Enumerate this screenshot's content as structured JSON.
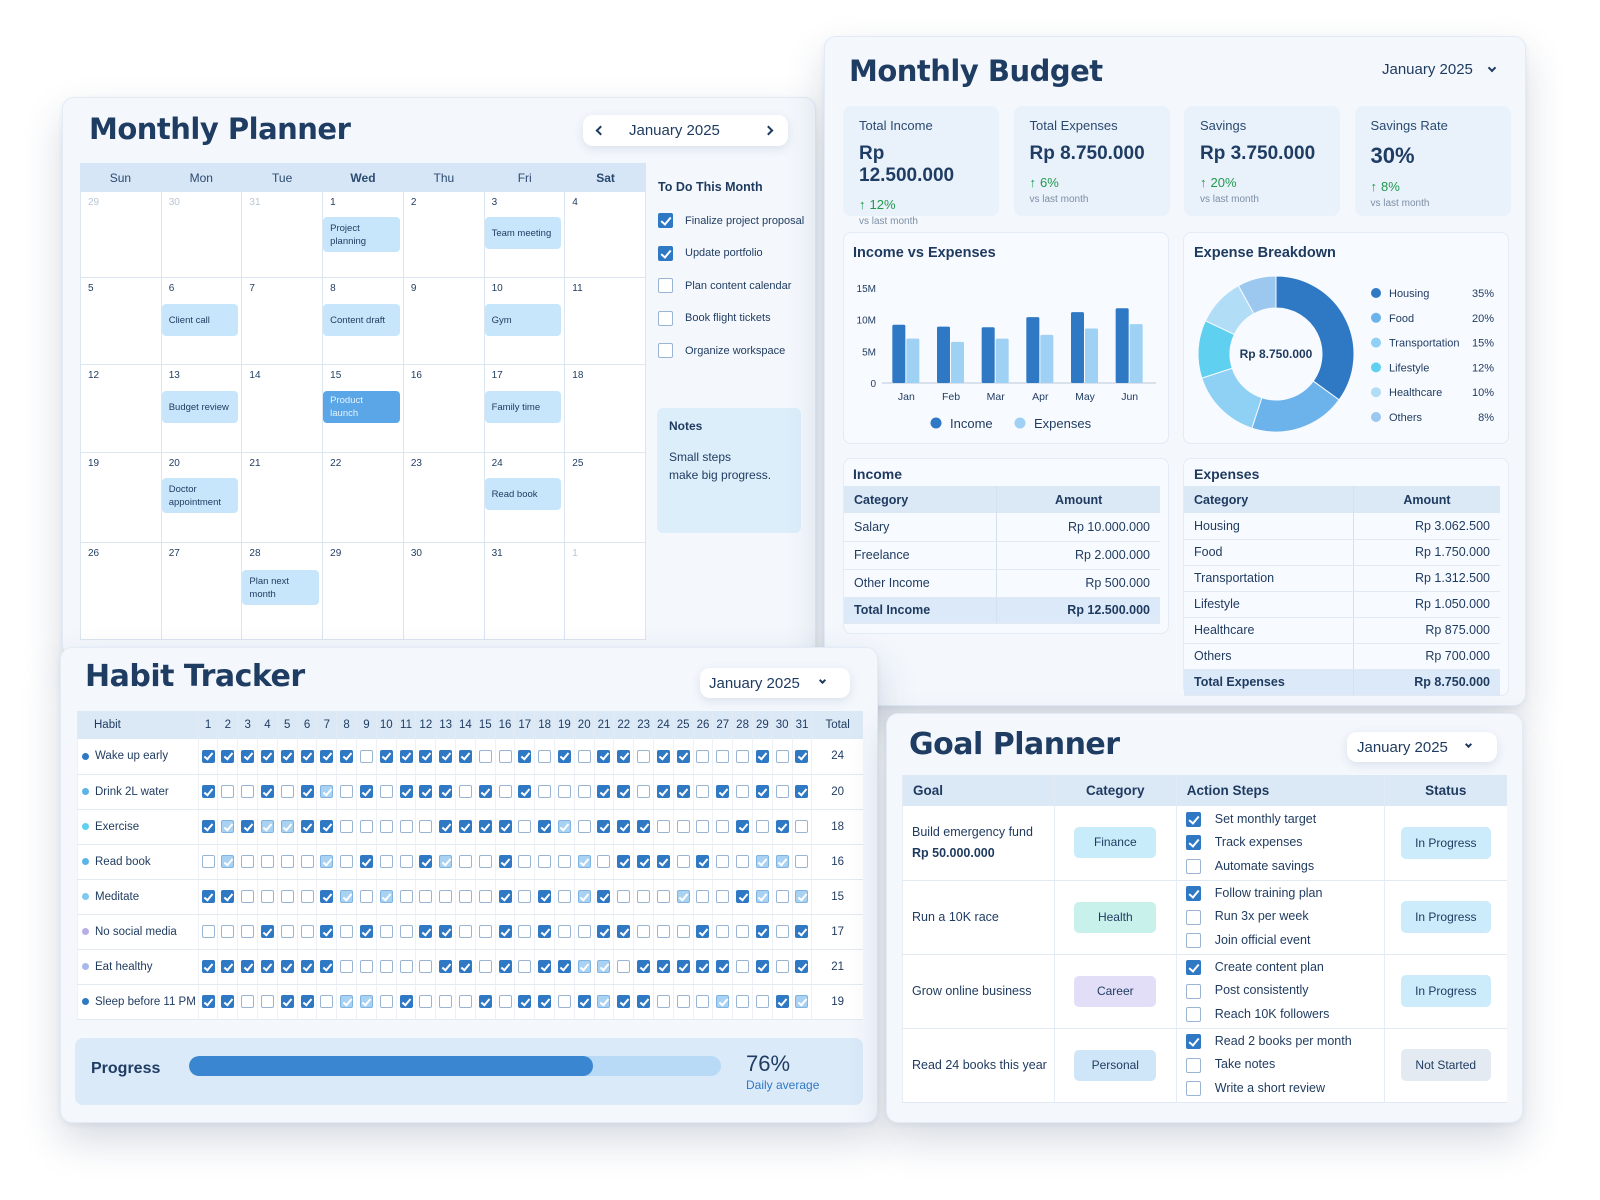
{
  "planner": {
    "title": "Monthly Planner",
    "month": "January 2025",
    "days": [
      "Sun",
      "Mon",
      "Tue",
      "Wed",
      "Thu",
      "Fri",
      "Sat"
    ],
    "weeks": [
      [
        {
          "d": "29",
          "dim": true
        },
        {
          "d": "30",
          "dim": true
        },
        {
          "d": "31",
          "dim": true
        },
        {
          "d": "1",
          "ev": "Project planning"
        },
        {
          "d": "2"
        },
        {
          "d": "3",
          "ev": "Team meeting"
        },
        {
          "d": "4"
        }
      ],
      [
        {
          "d": "5"
        },
        {
          "d": "6",
          "ev": "Client call"
        },
        {
          "d": "7"
        },
        {
          "d": "8",
          "ev": "Content draft"
        },
        {
          "d": "9"
        },
        {
          "d": "10",
          "ev": "Gym"
        },
        {
          "d": "11"
        }
      ],
      [
        {
          "d": "12"
        },
        {
          "d": "13",
          "ev": "Budget review"
        },
        {
          "d": "14"
        },
        {
          "d": "15",
          "ev": "Product launch",
          "strong": true
        },
        {
          "d": "16"
        },
        {
          "d": "17",
          "ev": "Family time"
        },
        {
          "d": "18"
        }
      ],
      [
        {
          "d": "19"
        },
        {
          "d": "20",
          "ev": "Doctor appointment"
        },
        {
          "d": "21"
        },
        {
          "d": "22"
        },
        {
          "d": "23"
        },
        {
          "d": "24",
          "ev": "Read book"
        },
        {
          "d": "25"
        }
      ],
      [
        {
          "d": "26"
        },
        {
          "d": "27"
        },
        {
          "d": "28",
          "ev": "Plan next month"
        },
        {
          "d": "29"
        },
        {
          "d": "30"
        },
        {
          "d": "31"
        },
        {
          "d": "1",
          "dim": true
        }
      ]
    ],
    "todo_title": "To Do This Month",
    "todos": [
      {
        "t": "Finalize project proposal",
        "c": true
      },
      {
        "t": "Update portfolio",
        "c": true
      },
      {
        "t": "Plan content calendar",
        "c": false
      },
      {
        "t": "Book flight tickets",
        "c": false
      },
      {
        "t": "Organize workspace",
        "c": false
      }
    ],
    "notes_title": "Notes",
    "notes_l1": "Small steps",
    "notes_l2": "make big progress."
  },
  "budget": {
    "title": "Monthly Budget",
    "month": "January 2025",
    "stats": [
      {
        "label": "Total Income",
        "value": "Rp 12.500.000",
        "change": "12%",
        "sub": "vs last month"
      },
      {
        "label": "Total Expenses",
        "value": "Rp 8.750.000",
        "change": "6%",
        "sub": "vs last month"
      },
      {
        "label": "Savings",
        "value": "Rp 3.750.000",
        "change": "20%",
        "sub": "vs last month"
      },
      {
        "label": "Savings Rate",
        "value": "30%",
        "change": "8%",
        "sub": "vs last month"
      }
    ],
    "ie_title": "Income vs Expenses",
    "eb_title": "Expense Breakdown",
    "donut_center": "Rp 8.750.000",
    "income_title": "Income",
    "expenses_title": "Expenses",
    "col_category": "Category",
    "col_amount": "Amount",
    "income_rows": [
      [
        "Salary",
        "Rp 10.000.000"
      ],
      [
        "Freelance",
        "Rp 2.000.000"
      ],
      [
        "Other Income",
        "Rp 500.000"
      ]
    ],
    "income_total": [
      "Total Income",
      "Rp 12.500.000"
    ],
    "expense_rows": [
      [
        "Housing",
        "Rp 3.062.500"
      ],
      [
        "Food",
        "Rp 1.750.000"
      ],
      [
        "Transportation",
        "Rp 1.312.500"
      ],
      [
        "Lifestyle",
        "Rp 1.050.000"
      ],
      [
        "Healthcare",
        "Rp 875.000"
      ],
      [
        "Others",
        "Rp 700.000"
      ]
    ],
    "expense_total": [
      "Total Expenses",
      "Rp 8.750.000"
    ]
  },
  "chart_data": [
    {
      "type": "bar",
      "title": "Income vs Expenses",
      "categories": [
        "Jan",
        "Feb",
        "Mar",
        "Apr",
        "May",
        "Jun"
      ],
      "y_ticks": [
        "0",
        "5M",
        "10M",
        "15M"
      ],
      "ylim": [
        0,
        15
      ],
      "series": [
        {
          "name": "Income",
          "values": [
            9.2,
            8.9,
            8.8,
            10.4,
            11.2,
            11.8
          ],
          "color": "#2f78c4"
        },
        {
          "name": "Expenses",
          "values": [
            7.0,
            6.5,
            7.0,
            7.6,
            8.6,
            9.3
          ],
          "color": "#9fd1f4"
        }
      ],
      "legend": "bottom"
    },
    {
      "type": "pie",
      "title": "Expense Breakdown",
      "legend": "right",
      "slices": [
        {
          "name": "Housing",
          "value": 35,
          "label": "35%",
          "color": "#2f78c4"
        },
        {
          "name": "Food",
          "value": 20,
          "label": "20%",
          "color": "#6cb3ec"
        },
        {
          "name": "Transportation",
          "value": 15,
          "label": "15%",
          "color": "#8fd0f5"
        },
        {
          "name": "Lifestyle",
          "value": 12,
          "label": "12%",
          "color": "#5fd0ef"
        },
        {
          "name": "Healthcare",
          "value": 10,
          "label": "10%",
          "color": "#b2ddf7"
        },
        {
          "name": "Others",
          "value": 8,
          "label": "8%",
          "color": "#9cc8f0"
        }
      ]
    }
  ],
  "habit": {
    "title": "Habit Tracker",
    "month": "January 2025",
    "col_habit": "Habit",
    "col_total": "Total",
    "rows": [
      {
        "name": "Wake up early",
        "color": "#2f78c4",
        "total": "24",
        "marks": "1111111101111100101011011000101111"
      },
      {
        "name": "Drink 2L water",
        "color": "#5bb3e8",
        "total": "20",
        "marks": "1010020210101121010111101011"
      },
      {
        "name": "Exercise",
        "color": "#5fd0ef",
        "total": "18",
        "marks": "1202221100001111011"
      },
      {
        "name": "Read book",
        "color": "#5bb3e8",
        "total": "16",
        "marks": "0200001000"
      },
      {
        "name": "Meditate",
        "color": "#7fc8f0",
        "total": "15",
        "marks": "1100001200"
      },
      {
        "name": "No social media",
        "color": "#b8aee6",
        "total": "17",
        "marks": "0001000100"
      },
      {
        "name": "Eat healthy",
        "color": "#a9b8e8",
        "total": "21",
        "marks": "1111111000"
      },
      {
        "name": "Sleep before 11 PM",
        "color": "#2f78c4",
        "total": "19",
        "marks": "1100110200"
      }
    ],
    "progress_label": "Progress",
    "progress_value": 0.76,
    "progress_pct": "76%",
    "progress_sub": "Daily average"
  },
  "goals": {
    "title": "Goal Planner",
    "month": "January 2025",
    "cols": [
      "Goal",
      "Category",
      "Action Steps",
      "Status"
    ],
    "rows": [
      {
        "goal": "Build emergency fund",
        "goal2": "Rp 50.000.000",
        "cat": "Finance",
        "catbg": "#c9ecfa",
        "steps": [
          [
            "Set monthly target",
            true
          ],
          [
            "Track expenses",
            true
          ],
          [
            "Automate savings",
            false
          ]
        ],
        "status": "In Progress"
      },
      {
        "goal": "Run a 10K race",
        "goal2": "",
        "cat": "Health",
        "catbg": "#c8f1ec",
        "steps": [
          [
            "Follow training plan",
            true
          ],
          [
            "Run 3x per week",
            false
          ],
          [
            "Join official event",
            false
          ]
        ],
        "status": "In Progress"
      },
      {
        "goal": "Grow online business",
        "goal2": "",
        "cat": "Career",
        "catbg": "#e2def8",
        "steps": [
          [
            "Create content plan",
            true
          ],
          [
            "Post consistently",
            false
          ],
          [
            "Reach 10K followers",
            false
          ]
        ],
        "status": "In Progress"
      },
      {
        "goal": "Read 24 books this year",
        "goal2": "",
        "cat": "Personal",
        "catbg": "#cfe6f8",
        "steps": [
          [
            "Read 2 books per month",
            true
          ],
          [
            "Take notes",
            false
          ],
          [
            "Write a short review",
            false
          ]
        ],
        "status": "Not Started",
        "statbg": "#e3eaf2"
      }
    ]
  }
}
